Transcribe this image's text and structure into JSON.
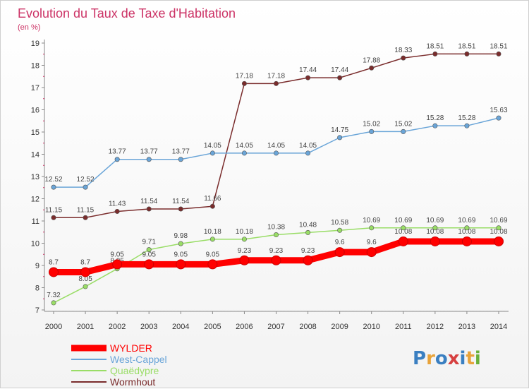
{
  "chart_data": {
    "type": "line",
    "title": "Evolution du Taux de Taxe d'Habitation",
    "subtitle": "(en %)",
    "x": [
      "2000",
      "2001",
      "2002",
      "2003",
      "2004",
      "2005",
      "2006",
      "2007",
      "2008",
      "2009",
      "2010",
      "2011",
      "2012",
      "2013",
      "2014"
    ],
    "ylim": [
      7,
      19
    ],
    "yticks": [
      7,
      8,
      9,
      10,
      11,
      12,
      13,
      14,
      15,
      16,
      17,
      18,
      19
    ],
    "grid": false,
    "legend_position": "bottom-left",
    "series": [
      {
        "name": "WYLDER",
        "color": "#ff0000",
        "values": [
          8.7,
          8.7,
          9.05,
          9.05,
          9.05,
          9.05,
          9.23,
          9.23,
          9.23,
          9.6,
          9.6,
          10.08,
          10.08,
          10.08,
          10.08
        ]
      },
      {
        "name": "West-Cappel",
        "color": "#6aa5d8",
        "values": [
          12.52,
          12.52,
          13.77,
          13.77,
          13.77,
          14.05,
          14.05,
          14.05,
          14.05,
          14.75,
          15.02,
          15.02,
          15.28,
          15.28,
          15.63
        ]
      },
      {
        "name": "Quaëdypre",
        "color": "#99dd66",
        "values": [
          7.32,
          8.05,
          8.85,
          9.71,
          9.98,
          10.18,
          10.18,
          10.38,
          10.48,
          10.58,
          10.69,
          10.69,
          10.69,
          10.69,
          10.69
        ]
      },
      {
        "name": "Wormhout",
        "color": "#7a2c2c",
        "values": [
          11.15,
          11.15,
          11.43,
          11.54,
          11.54,
          11.66,
          17.18,
          17.18,
          17.44,
          17.44,
          17.88,
          18.33,
          18.51,
          18.51,
          18.51
        ]
      }
    ]
  },
  "logo": {
    "text": "Proxiti"
  }
}
